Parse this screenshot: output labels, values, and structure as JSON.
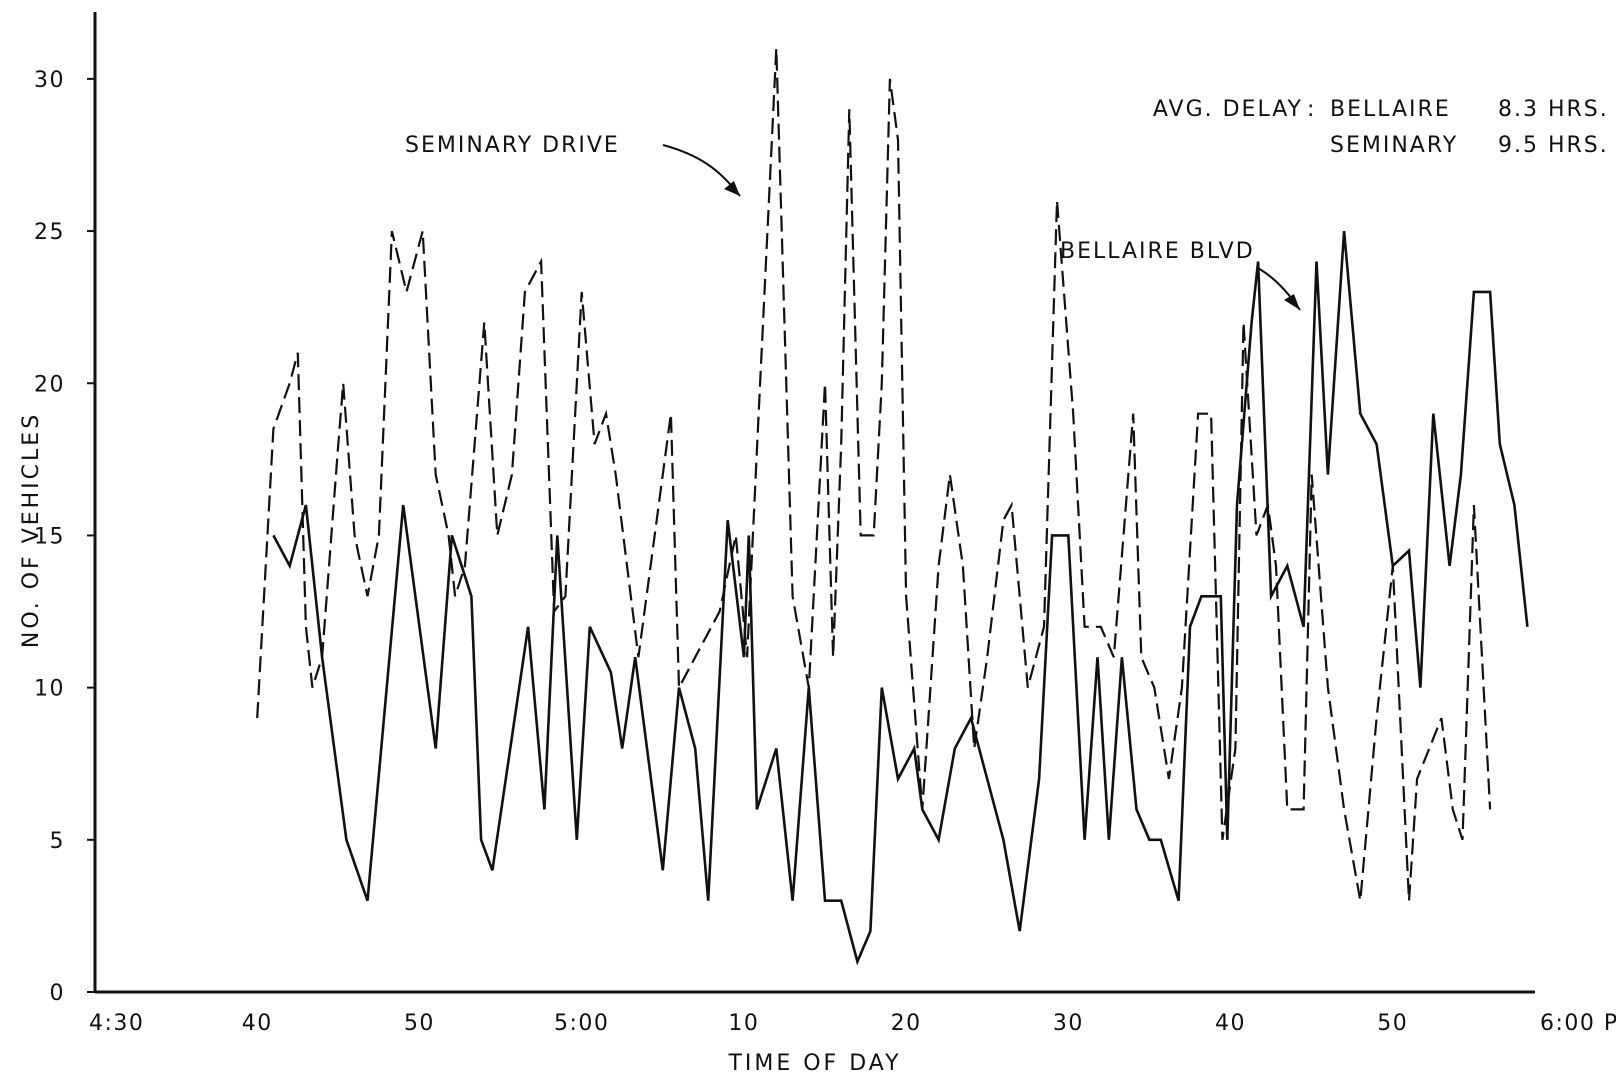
{
  "chart_data": {
    "type": "line",
    "title": "",
    "xlabel": "TIME OF DAY",
    "ylabel": "NO. OF VEHICLES",
    "xlim": [
      0,
      90
    ],
    "ylim": [
      0,
      32
    ],
    "x_unit": "minutes after 4:30 PM",
    "grid": false,
    "x_ticks": [
      {
        "value": 0,
        "label": "4:30"
      },
      {
        "value": 10,
        "label": "40"
      },
      {
        "value": 20,
        "label": "50"
      },
      {
        "value": 30,
        "label": "5:00"
      },
      {
        "value": 40,
        "label": "10"
      },
      {
        "value": 50,
        "label": "20"
      },
      {
        "value": 60,
        "label": "30"
      },
      {
        "value": 70,
        "label": "40"
      },
      {
        "value": 80,
        "label": "50"
      },
      {
        "value": 90,
        "label": "6:00 PM"
      }
    ],
    "y_ticks": [
      {
        "value": 0,
        "label": "0"
      },
      {
        "value": 5,
        "label": "5"
      },
      {
        "value": 10,
        "label": "10"
      },
      {
        "value": 15,
        "label": "15"
      },
      {
        "value": 20,
        "label": "20"
      },
      {
        "value": 25,
        "label": "25"
      },
      {
        "value": 30,
        "label": "30"
      }
    ],
    "annotations": {
      "seminary_label": "SEMINARY DRIVE",
      "bellaire_label": "BELLAIRE BLVD",
      "avg_prefix": "AVG. DELAY",
      "avg_bellaire_name": "BELLAIRE",
      "avg_bellaire_value": "8.3 HRS.",
      "avg_seminary_name": "SEMINARY",
      "avg_seminary_value": "9.5 HRS."
    },
    "series": [
      {
        "name": "SEMINARY DRIVE",
        "style": "dashed",
        "points": [
          [
            10,
            9
          ],
          [
            11,
            18.5
          ],
          [
            12,
            20
          ],
          [
            12.5,
            21
          ],
          [
            13,
            12
          ],
          [
            13.4,
            10
          ],
          [
            14,
            11
          ],
          [
            15,
            18
          ],
          [
            15.3,
            20
          ],
          [
            16,
            15
          ],
          [
            16.8,
            13
          ],
          [
            17.5,
            15
          ],
          [
            18.3,
            25
          ],
          [
            19.2,
            23
          ],
          [
            20.2,
            25
          ],
          [
            21,
            17
          ],
          [
            21.8,
            15
          ],
          [
            22.2,
            13
          ],
          [
            22.8,
            14
          ],
          [
            24,
            22
          ],
          [
            24.8,
            15
          ],
          [
            25.7,
            17
          ],
          [
            26.5,
            23
          ],
          [
            27.5,
            24
          ],
          [
            28.3,
            12.5
          ],
          [
            29,
            13
          ],
          [
            30,
            23
          ],
          [
            30.8,
            18
          ],
          [
            31.5,
            19
          ],
          [
            32.1,
            17
          ],
          [
            33.5,
            11
          ],
          [
            35.5,
            19
          ],
          [
            36,
            10
          ],
          [
            37,
            11
          ],
          [
            38.5,
            12.5
          ],
          [
            39.5,
            15
          ],
          [
            40.2,
            11
          ],
          [
            41,
            20
          ],
          [
            42,
            31
          ],
          [
            43,
            13
          ],
          [
            44,
            10
          ],
          [
            45,
            20
          ],
          [
            45.5,
            11
          ],
          [
            46,
            18
          ],
          [
            46.5,
            29
          ],
          [
            47.2,
            15
          ],
          [
            48,
            15
          ],
          [
            48.5,
            20
          ],
          [
            49,
            30
          ],
          [
            49.5,
            28
          ],
          [
            50,
            13
          ],
          [
            51,
            6
          ],
          [
            52,
            14
          ],
          [
            52.7,
            17
          ],
          [
            53.5,
            14
          ],
          [
            54.2,
            8
          ],
          [
            55,
            11
          ],
          [
            56,
            15.5
          ],
          [
            56.5,
            16
          ],
          [
            57.5,
            10
          ],
          [
            58.5,
            12
          ],
          [
            59.3,
            26
          ],
          [
            60.3,
            19
          ],
          [
            61,
            12
          ],
          [
            62,
            12
          ],
          [
            62.8,
            11
          ],
          [
            64,
            19
          ],
          [
            64.5,
            11
          ],
          [
            65.3,
            10
          ],
          [
            66.2,
            7
          ],
          [
            67,
            10
          ],
          [
            68,
            19
          ],
          [
            68.8,
            19
          ],
          [
            69.5,
            5
          ],
          [
            70.3,
            8
          ],
          [
            70.8,
            22
          ],
          [
            71.6,
            15
          ],
          [
            72.3,
            16
          ],
          [
            72.8,
            14
          ],
          [
            73.5,
            6
          ],
          [
            74.5,
            6
          ],
          [
            75,
            17
          ],
          [
            76,
            10
          ],
          [
            77,
            6
          ],
          [
            78,
            3
          ],
          [
            79,
            9
          ],
          [
            80,
            14
          ],
          [
            81,
            3
          ],
          [
            81.5,
            7
          ],
          [
            83,
            9
          ],
          [
            83.7,
            6
          ],
          [
            84.3,
            5
          ],
          [
            85,
            16
          ],
          [
            86,
            6
          ]
        ]
      },
      {
        "name": "BELLAIRE BLVD",
        "style": "solid",
        "points": [
          [
            11,
            15
          ],
          [
            12,
            14
          ],
          [
            13,
            16
          ],
          [
            14,
            11
          ],
          [
            15.5,
            5
          ],
          [
            16.8,
            3
          ],
          [
            19,
            16
          ],
          [
            21,
            8
          ],
          [
            22,
            15
          ],
          [
            23.2,
            13
          ],
          [
            23.8,
            5
          ],
          [
            24.5,
            4
          ],
          [
            26.7,
            12
          ],
          [
            27.7,
            6
          ],
          [
            28.5,
            15
          ],
          [
            29.7,
            5
          ],
          [
            30.5,
            12
          ],
          [
            31.8,
            10.5
          ],
          [
            32.5,
            8
          ],
          [
            33.3,
            11
          ],
          [
            35,
            4
          ],
          [
            36,
            10
          ],
          [
            37,
            8
          ],
          [
            37.8,
            3
          ],
          [
            39,
            15.5
          ],
          [
            40,
            11
          ],
          [
            40.3,
            15
          ],
          [
            40.8,
            6
          ],
          [
            42,
            8
          ],
          [
            43,
            3
          ],
          [
            44,
            10
          ],
          [
            45,
            3
          ],
          [
            46,
            3
          ],
          [
            47,
            1
          ],
          [
            47.8,
            2
          ],
          [
            48.5,
            10
          ],
          [
            49.5,
            7
          ],
          [
            50.5,
            8
          ],
          [
            51,
            6
          ],
          [
            52,
            5
          ],
          [
            53,
            8
          ],
          [
            54,
            9
          ],
          [
            56,
            5
          ],
          [
            57,
            2
          ],
          [
            58.2,
            7
          ],
          [
            59,
            15
          ],
          [
            60,
            15
          ],
          [
            61,
            5
          ],
          [
            61.8,
            11
          ],
          [
            62.5,
            5
          ],
          [
            63.3,
            11
          ],
          [
            64.2,
            6
          ],
          [
            65,
            5
          ],
          [
            65.7,
            5
          ],
          [
            66.8,
            3
          ],
          [
            67.5,
            12
          ],
          [
            68.2,
            13
          ],
          [
            69.4,
            13
          ],
          [
            69.8,
            5
          ],
          [
            70.4,
            16
          ],
          [
            71.3,
            22
          ],
          [
            71.7,
            24
          ],
          [
            72.5,
            13
          ],
          [
            73.5,
            14
          ],
          [
            74.5,
            12
          ],
          [
            75.3,
            24
          ],
          [
            76,
            17
          ],
          [
            77,
            25
          ],
          [
            78,
            19
          ],
          [
            79,
            18
          ],
          [
            80,
            14
          ],
          [
            81,
            14.5
          ],
          [
            81.7,
            10
          ],
          [
            82.5,
            19
          ],
          [
            83.5,
            14
          ],
          [
            84.2,
            17
          ],
          [
            85,
            23
          ],
          [
            86,
            23
          ],
          [
            86.6,
            18
          ],
          [
            87.5,
            16
          ],
          [
            88.3,
            12
          ]
        ]
      }
    ]
  }
}
